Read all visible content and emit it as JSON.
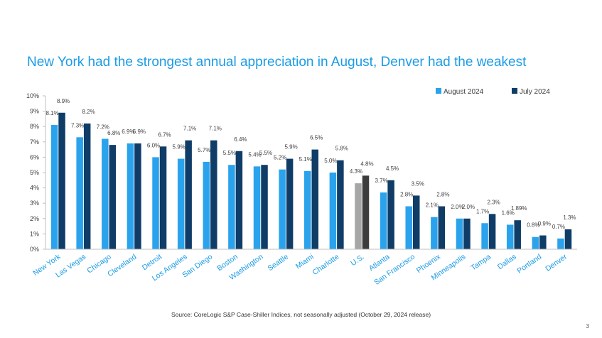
{
  "slide": {
    "title": "New York had the strongest annual appreciation in August, Denver had the weakest",
    "source": "Source: CoreLogic S&P Case-Shiller Indices, not seasonally adjusted (October 29, 2024 release)",
    "page_number": "3"
  },
  "colors": {
    "august": "#2aa3ec",
    "july": "#0f3d68",
    "us_august": "#a6a6a6",
    "us_july": "#3c3c3c",
    "title": "#1a9be6",
    "text": "#404040"
  },
  "chart_data": {
    "type": "bar",
    "title": "New York had the strongest annual appreciation in August, Denver had the weakest",
    "xlabel": "",
    "ylabel": "",
    "ylim": [
      0,
      10
    ],
    "yticks": [
      "0%",
      "1%",
      "2%",
      "3%",
      "4%",
      "5%",
      "6%",
      "7%",
      "8%",
      "9%",
      "10%"
    ],
    "grid": false,
    "legend_position": "top-right",
    "categories": [
      "New York",
      "Las Vegas",
      "Chicago",
      "Cleveland",
      "Detroit",
      "Los Angeles",
      "San Diego",
      "Boston",
      "Washington",
      "Seattle",
      "Miami",
      "Charlotte",
      "U.S.",
      "Atlanta",
      "San Francisco",
      "Phoenix",
      "Minneapolis",
      "Tampa",
      "Dallas",
      "Portland",
      "Denver"
    ],
    "series": [
      {
        "name": "August 2024",
        "values": [
          8.1,
          7.3,
          7.2,
          6.9,
          6.0,
          5.9,
          5.7,
          5.5,
          5.4,
          5.2,
          5.1,
          5.0,
          4.3,
          3.7,
          2.8,
          2.1,
          2.0,
          1.7,
          1.6,
          0.8,
          0.7
        ],
        "labels": [
          "8.1%",
          "7.3%",
          "7.2%",
          "6.9%",
          "6.0%",
          "5.9%",
          "5.7%",
          "5.5%",
          "5.4%",
          "5.2%",
          "5.1%",
          "5.0%",
          "4.3%",
          "3.7%",
          "2.8%",
          "2.1%",
          "2.0%",
          "1.7%",
          "1.6%",
          "0.8%",
          "0.7%"
        ]
      },
      {
        "name": "July 2024",
        "values": [
          8.9,
          8.2,
          6.8,
          6.9,
          6.7,
          7.1,
          7.1,
          6.4,
          5.5,
          5.9,
          6.5,
          5.8,
          4.8,
          4.5,
          3.5,
          2.8,
          2.0,
          2.3,
          1.89,
          0.9,
          1.3
        ],
        "labels": [
          "8.9%",
          "8.2%",
          "6.8%",
          "6.9%",
          "6.7%",
          "7.1%",
          "7.1%",
          "6.4%",
          "5.5%",
          "5.9%",
          "6.5%",
          "5.8%",
          "4.8%",
          "4.5%",
          "3.5%",
          "2.8%",
          "2.0%",
          "2.3%",
          "1.89%",
          "0.9%",
          "1.3%"
        ]
      }
    ]
  }
}
